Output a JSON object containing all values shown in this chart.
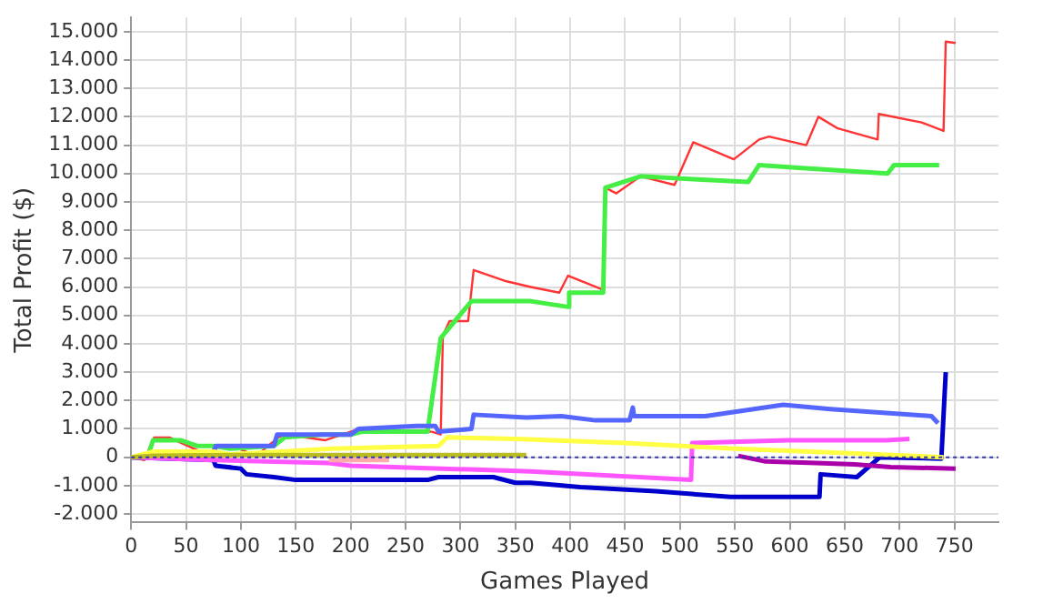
{
  "chart_data": {
    "type": "line",
    "xlabel": "Games Played",
    "ylabel": "Total Profit ($)",
    "xlim": [
      0,
      790
    ],
    "xticks": [
      0,
      50,
      100,
      150,
      200,
      250,
      300,
      350,
      400,
      450,
      500,
      550,
      600,
      650,
      700,
      750
    ],
    "ylim": [
      -2300,
      15500
    ],
    "yticks": [
      {
        "value": -2000,
        "label": "-2.000"
      },
      {
        "value": -1000,
        "label": "-1.000"
      },
      0,
      {
        "value": 1000,
        "label": "1.000"
      },
      {
        "value": 2000,
        "label": "2.000"
      },
      {
        "value": 3000,
        "label": "3.000"
      },
      {
        "value": 4000,
        "label": "4.000"
      },
      {
        "value": 5000,
        "label": "5.000"
      },
      {
        "value": 6000,
        "label": "6.000"
      },
      {
        "value": 7000,
        "label": "7.000"
      },
      {
        "value": 8000,
        "label": "8.000"
      },
      {
        "value": 9000,
        "label": "9.000"
      },
      {
        "value": 10000,
        "label": "10.000"
      },
      {
        "value": 11000,
        "label": "11.000"
      },
      {
        "value": 12000,
        "label": "12.000"
      },
      {
        "value": 13000,
        "label": "13.000"
      },
      {
        "value": 14000,
        "label": "14.000"
      },
      {
        "value": 15000,
        "label": "15.000"
      }
    ],
    "grid": true,
    "legend": false,
    "ref_lines": [
      {
        "axis": "y",
        "value": 0,
        "color": "#3333aa",
        "line_style": "dotted"
      }
    ],
    "series": [
      {
        "color": "#bbbb22",
        "x": [
          0,
          20,
          100,
          360
        ],
        "values": [
          0,
          50,
          80,
          80
        ]
      },
      {
        "color": "#ffaaaa",
        "x": [
          180,
          235
        ],
        "values": [
          -100,
          -100
        ]
      },
      {
        "color": "#ffff44",
        "x": [
          0,
          20,
          75,
          90,
          183,
          280,
          288,
          350,
          450,
          550,
          650,
          740
        ],
        "values": [
          0,
          200,
          200,
          100,
          300,
          400,
          700,
          650,
          500,
          300,
          150,
          0
        ]
      },
      {
        "color": "#ff55ff",
        "x": [
          0,
          75,
          180,
          200,
          364,
          510,
          511,
          598,
          688,
          709
        ],
        "values": [
          0,
          -100,
          -200,
          -300,
          -500,
          -800,
          500,
          600,
          600,
          650
        ]
      },
      {
        "color": "#aa00aa",
        "x": [
          553,
          578,
          624,
          659,
          692,
          751
        ],
        "values": [
          50,
          -150,
          -200,
          -250,
          -350,
          -400
        ]
      },
      {
        "color": "#0000cc",
        "x": [
          0,
          75,
          77,
          100,
          105,
          130,
          150,
          270,
          280,
          330,
          350,
          364,
          409,
          478,
          546,
          627,
          628,
          661,
          682,
          738,
          742
        ],
        "values": [
          0,
          -100,
          -300,
          -400,
          -600,
          -700,
          -800,
          -800,
          -700,
          -700,
          -900,
          -900,
          -1050,
          -1200,
          -1400,
          -1400,
          -600,
          -700,
          0,
          -50,
          3000
        ]
      },
      {
        "color": "#5566ff",
        "x": [
          0,
          75,
          77,
          130,
          133,
          200,
          207,
          260,
          277,
          280,
          310,
          312,
          360,
          392,
          423,
          454,
          457,
          458,
          523,
          594,
          637,
          729,
          735
        ],
        "values": [
          0,
          0,
          400,
          400,
          800,
          800,
          1000,
          1100,
          1100,
          900,
          1000,
          1500,
          1400,
          1450,
          1300,
          1300,
          1750,
          1450,
          1450,
          1850,
          1700,
          1450,
          1200
        ]
      },
      {
        "color": "#44ee44",
        "x": [
          0,
          15,
          20,
          45,
          60,
          75,
          90,
          130,
          140,
          175,
          200,
          210,
          270,
          282,
          310,
          364,
          398,
          399,
          430,
          432,
          464,
          512,
          562,
          572,
          608,
          689,
          695,
          736
        ],
        "values": [
          0,
          0,
          600,
          600,
          400,
          400,
          300,
          400,
          700,
          800,
          800,
          900,
          900,
          4200,
          5500,
          5500,
          5300,
          5800,
          5800,
          9500,
          9900,
          9800,
          9700,
          10300,
          10200,
          10000,
          10300,
          10300
        ]
      },
      {
        "color": "#ff3333",
        "x": [
          0,
          12,
          21,
          35,
          46,
          69,
          74,
          75,
          95,
          114,
          134,
          140,
          177,
          208,
          274,
          282,
          284,
          290,
          307,
          312,
          342,
          364,
          390,
          398,
          430,
          432,
          442,
          464,
          495,
          512,
          549,
          572,
          581,
          615,
          626,
          643,
          680,
          681,
          720,
          740,
          742,
          751
        ],
        "values": [
          0,
          -100,
          700,
          700,
          500,
          100,
          0,
          400,
          350,
          50,
          700,
          800,
          600,
          1000,
          900,
          800,
          4300,
          4800,
          4800,
          6600,
          6200,
          6000,
          5800,
          6400,
          5900,
          9500,
          9300,
          9900,
          9600,
          11100,
          10500,
          11200,
          11300,
          11000,
          12000,
          11600,
          11200,
          12100,
          11800,
          11500,
          14650,
          14600
        ]
      }
    ]
  }
}
